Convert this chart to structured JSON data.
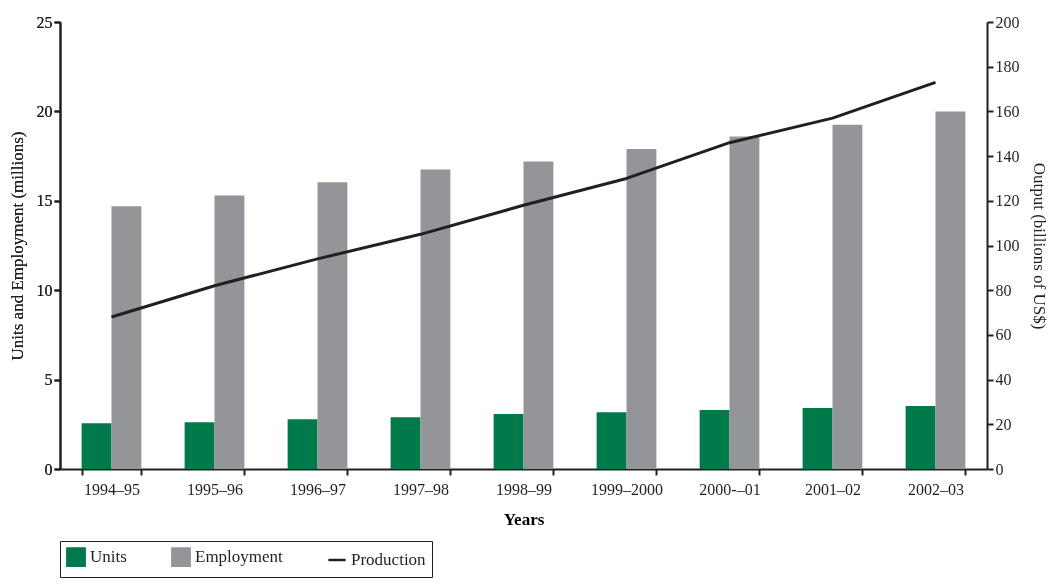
{
  "chart_data": {
    "type": "bar",
    "xlabel": "Years",
    "ylabel": "Units and Employment (millions)",
    "y2label": "Output (billions of US$)",
    "categories": [
      "1994–95",
      "1995–96",
      "1996–97",
      "1997–98",
      "1998–99",
      "1999–2000",
      "2000-–01",
      "2001–02",
      "2002–03"
    ],
    "series": [
      {
        "name": "Units",
        "color": "#007a4a",
        "values": [
          2.56,
          2.61,
          2.78,
          2.9,
          3.07,
          3.18,
          3.3,
          3.41,
          3.52
        ]
      },
      {
        "name": "Employment",
        "color": "#939598",
        "values": [
          14.7,
          15.3,
          16.04,
          16.75,
          17.2,
          17.9,
          18.6,
          19.26,
          20.0
        ]
      },
      {
        "name": "Production",
        "type": "line",
        "axis": "y2",
        "color": "#231f20",
        "values": [
          68,
          82,
          94,
          105,
          118,
          130,
          146,
          157,
          173
        ]
      }
    ],
    "ylim": [
      0,
      25
    ],
    "yticks": [
      0,
      5,
      10,
      15,
      20,
      25
    ],
    "y2lim": [
      0,
      200
    ],
    "y2ticks": [
      0,
      20,
      40,
      60,
      80,
      100,
      120,
      140,
      160,
      180,
      200
    ],
    "legend": "bottom",
    "grid": false
  }
}
